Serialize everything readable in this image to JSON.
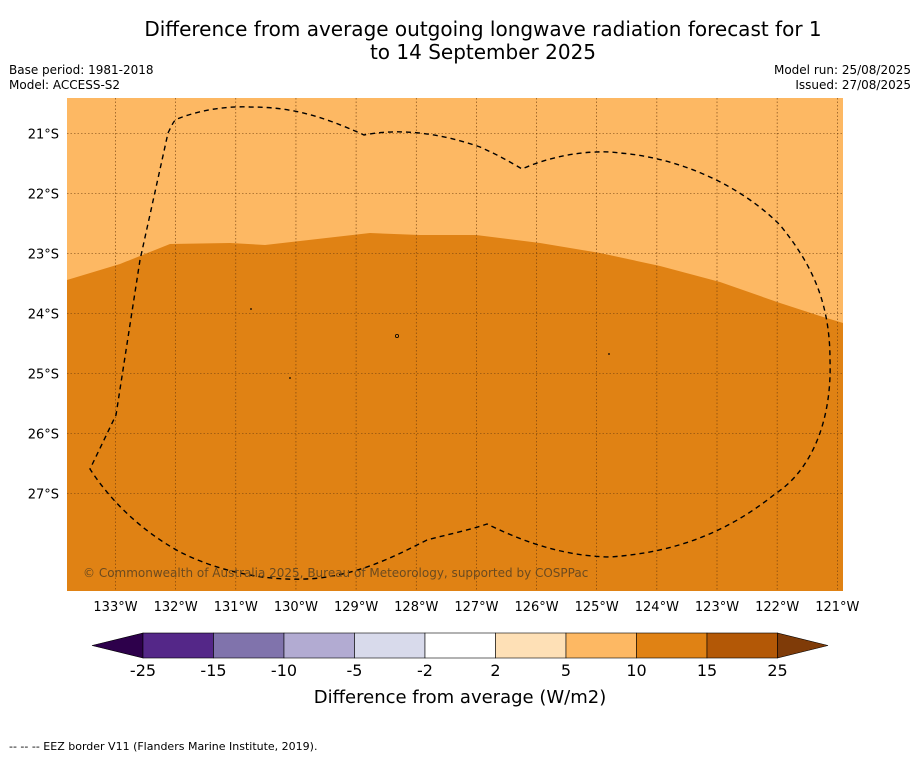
{
  "title": "Difference from average outgoing longwave radiation forecast for 1 to 14 September 2025",
  "header": {
    "base_period": "Base period: 1981-2018",
    "model": "Model: ACCESS-S2",
    "model_run": "Model run: 25/08/2025",
    "issued": "Issued: 27/08/2025"
  },
  "map": {
    "lon_range": [
      -133.8,
      -120.9
    ],
    "lat_range": [
      -20.4,
      -28.6
    ],
    "lon_ticks": [
      "133°W",
      "132°W",
      "131°W",
      "130°W",
      "129°W",
      "128°W",
      "127°W",
      "126°W",
      "125°W",
      "124°W",
      "123°W",
      "122°W",
      "121°W"
    ],
    "lat_ticks": [
      "21°S",
      "22°S",
      "23°S",
      "24°S",
      "25°S",
      "26°S",
      "27°S"
    ],
    "regions": [
      {
        "category": "10 to 15",
        "color": "#e08214",
        "area": "southern"
      },
      {
        "category": "5 to 10",
        "color": "#fdb863",
        "area": "northern"
      }
    ],
    "boundary_style": "dashed EEZ border",
    "copyright": "© Commonwealth of Australia 2025, Bureau of Meteorology, supported by COSPPac"
  },
  "colorbar": {
    "title": "Difference from average (W/m2)",
    "labels": [
      "-25",
      "-15",
      "-10",
      "-5",
      "-2",
      "2",
      "5",
      "10",
      "15",
      "25"
    ],
    "colors": [
      "#2d004b",
      "#542788",
      "#8073ac",
      "#b2abd2",
      "#d8daeb",
      "#ffffff",
      "#fee0b6",
      "#fdb863",
      "#e08214",
      "#b35806",
      "#7f3b08"
    ]
  },
  "footer": {
    "legend_note": "--  --  -- EEZ border V11 (Flanders Marine Institute, 2019)."
  }
}
